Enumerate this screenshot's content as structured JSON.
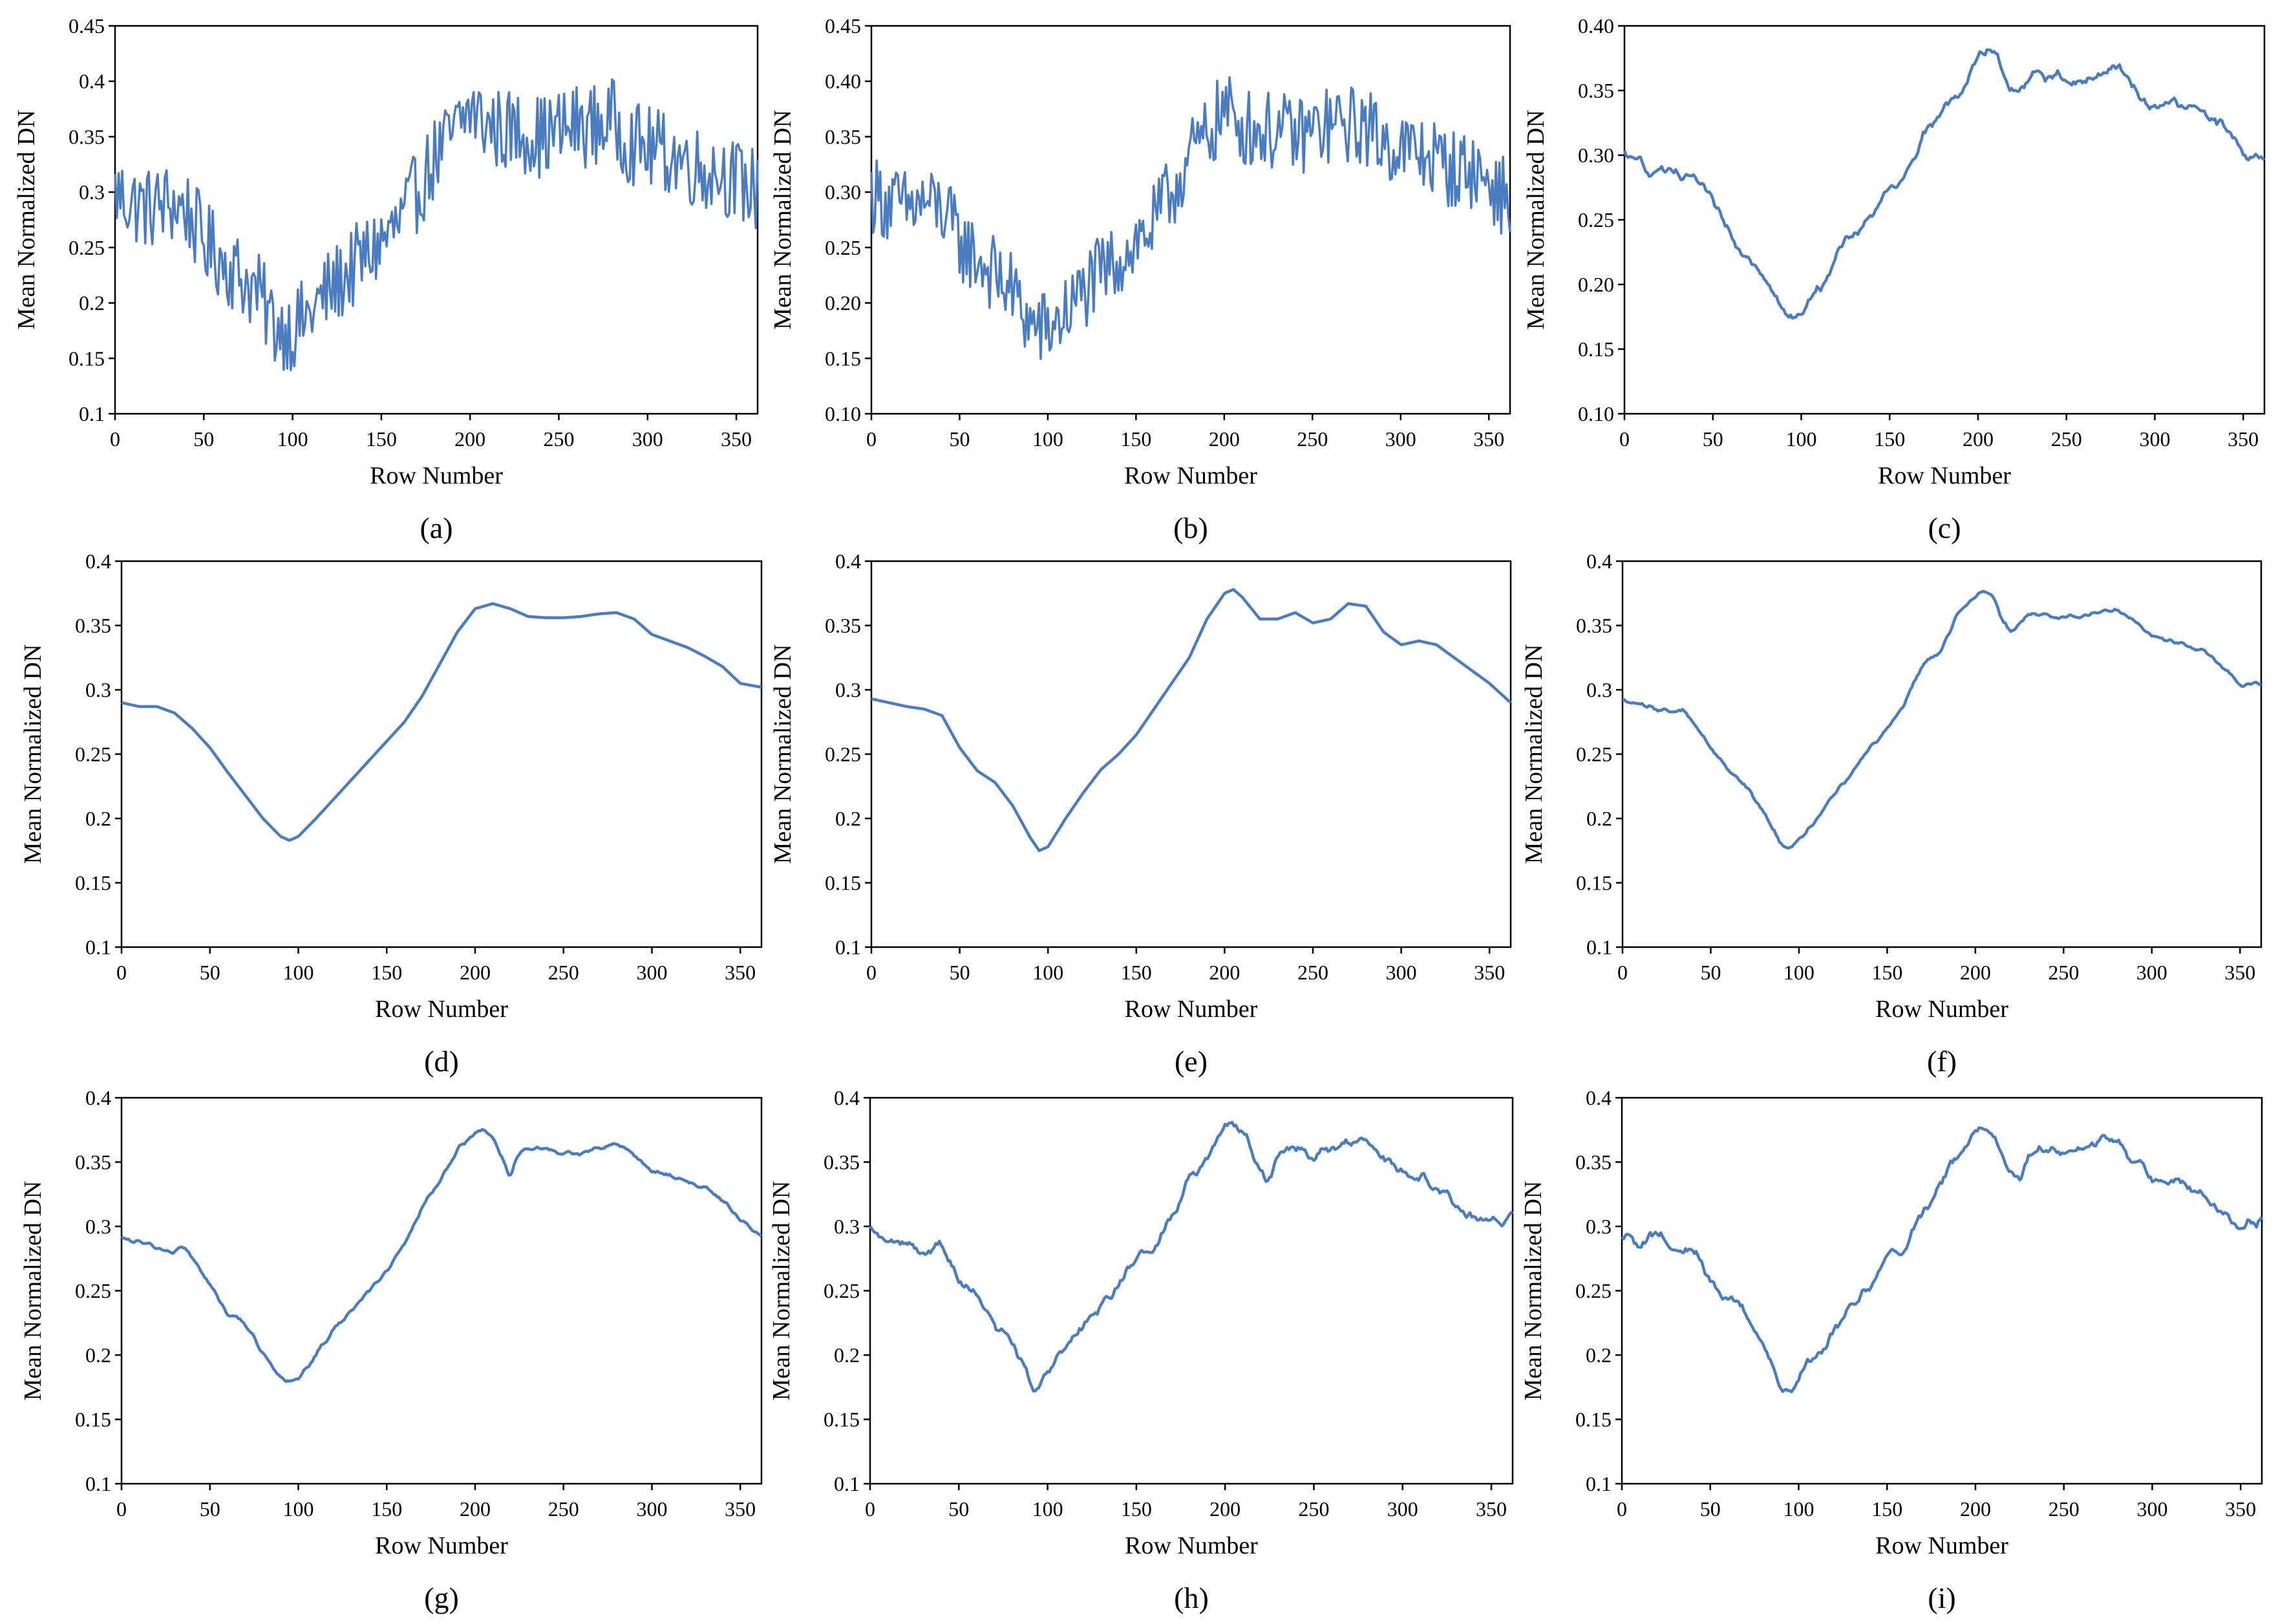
{
  "figure": {
    "common": {
      "xlabel": "Row Number",
      "ylabel": "Mean Normalized DN",
      "xlim": [
        0,
        362
      ],
      "xticks": [
        "0",
        "50",
        "100",
        "150",
        "200",
        "250",
        "300",
        "350"
      ],
      "line_color": "#4a7cbf",
      "axis_color": "#000000",
      "noise_levels": {
        "a": 0.038,
        "b": 0.036,
        "c": 0.014,
        "d": 0.0,
        "e": 0.0,
        "f": 0.0025,
        "g": 0.0025,
        "h": 0.01,
        "i": 0.01
      },
      "smoothing_windows": {
        "a": 0,
        "b": 0,
        "c": 3,
        "d": 0,
        "e": 0,
        "f": 1,
        "g": 1,
        "h": 2,
        "i": 2
      }
    }
  },
  "chart_data": [
    {
      "id": "a",
      "label": "(a)",
      "type": "line",
      "style": "very noisy",
      "xlabel": "Row Number",
      "ylabel": "Mean Normalized DN",
      "ylim": [
        0.1,
        0.45
      ],
      "yticks": [
        "0.1",
        "0.15",
        "0.2",
        "0.25",
        "0.3",
        "0.35",
        "0.4",
        "0.45"
      ],
      "xlim": [
        0,
        362
      ],
      "x": [
        0,
        10,
        20,
        30,
        40,
        50,
        60,
        70,
        80,
        90,
        100,
        110,
        120,
        130,
        140,
        150,
        160,
        170,
        180,
        190,
        200,
        210,
        220,
        230,
        240,
        250,
        260,
        270,
        280,
        290,
        300,
        310,
        320,
        330,
        340,
        350,
        362
      ],
      "y": [
        0.3,
        0.29,
        0.285,
        0.29,
        0.285,
        0.255,
        0.24,
        0.225,
        0.21,
        0.18,
        0.175,
        0.19,
        0.21,
        0.225,
        0.24,
        0.255,
        0.27,
        0.3,
        0.33,
        0.35,
        0.375,
        0.36,
        0.355,
        0.355,
        0.35,
        0.355,
        0.36,
        0.36,
        0.365,
        0.345,
        0.34,
        0.335,
        0.33,
        0.32,
        0.32,
        0.31,
        0.3
      ]
    },
    {
      "id": "b",
      "label": "(b)",
      "type": "line",
      "style": "very noisy",
      "xlabel": "Row Number",
      "ylabel": "Mean Normalized DN",
      "ylim": [
        0.1,
        0.45
      ],
      "yticks": [
        "0.10",
        "0.15",
        "0.20",
        "0.25",
        "0.30",
        "0.35",
        "0.40",
        "0.45"
      ],
      "xlim": [
        0,
        362
      ],
      "x": [
        0,
        10,
        20,
        30,
        40,
        50,
        60,
        70,
        80,
        90,
        100,
        110,
        120,
        130,
        140,
        150,
        160,
        170,
        180,
        190,
        200,
        210,
        220,
        230,
        240,
        250,
        260,
        270,
        280,
        290,
        300,
        310,
        320,
        330,
        340,
        350,
        362
      ],
      "y": [
        0.3,
        0.29,
        0.285,
        0.29,
        0.285,
        0.255,
        0.24,
        0.225,
        0.21,
        0.18,
        0.175,
        0.19,
        0.21,
        0.225,
        0.24,
        0.255,
        0.27,
        0.3,
        0.33,
        0.35,
        0.375,
        0.36,
        0.355,
        0.355,
        0.35,
        0.355,
        0.36,
        0.36,
        0.36,
        0.345,
        0.34,
        0.335,
        0.33,
        0.32,
        0.32,
        0.31,
        0.29
      ]
    },
    {
      "id": "c",
      "label": "(c)",
      "type": "line",
      "style": "moderately noisy",
      "xlabel": "Row Number",
      "ylabel": "Mean Normalized DN",
      "ylim": [
        0.1,
        0.4
      ],
      "yticks": [
        "0.10",
        "0.15",
        "0.20",
        "0.25",
        "0.30",
        "0.35",
        "0.40"
      ],
      "xlim": [
        0,
        362
      ],
      "x": [
        0,
        10,
        20,
        30,
        40,
        50,
        60,
        70,
        80,
        90,
        95,
        100,
        110,
        120,
        130,
        140,
        150,
        160,
        170,
        180,
        190,
        200,
        210,
        220,
        230,
        240,
        250,
        260,
        270,
        280,
        290,
        300,
        310,
        320,
        330,
        340,
        350,
        362
      ],
      "y": [
        0.3,
        0.29,
        0.29,
        0.28,
        0.28,
        0.26,
        0.24,
        0.225,
        0.21,
        0.175,
        0.17,
        0.18,
        0.2,
        0.22,
        0.24,
        0.255,
        0.27,
        0.29,
        0.32,
        0.335,
        0.35,
        0.375,
        0.38,
        0.345,
        0.365,
        0.36,
        0.36,
        0.355,
        0.365,
        0.37,
        0.345,
        0.34,
        0.34,
        0.335,
        0.33,
        0.32,
        0.305,
        0.29
      ]
    },
    {
      "id": "d",
      "label": "(d)",
      "type": "line",
      "style": "smooth",
      "xlabel": "Row Number",
      "ylabel": "Mean Normalized DN",
      "ylim": [
        0.1,
        0.4
      ],
      "yticks": [
        "0.1",
        "0.15",
        "0.2",
        "0.25",
        "0.3",
        "0.35",
        "0.4"
      ],
      "xlim": [
        0,
        362
      ],
      "x": [
        0,
        10,
        20,
        30,
        40,
        50,
        60,
        70,
        80,
        90,
        95,
        100,
        110,
        120,
        130,
        140,
        150,
        160,
        170,
        180,
        190,
        200,
        210,
        220,
        230,
        240,
        250,
        260,
        270,
        280,
        290,
        300,
        310,
        320,
        330,
        340,
        350,
        362
      ],
      "y": [
        0.29,
        0.287,
        0.287,
        0.282,
        0.27,
        0.255,
        0.236,
        0.218,
        0.2,
        0.186,
        0.183,
        0.186,
        0.2,
        0.215,
        0.23,
        0.245,
        0.26,
        0.275,
        0.295,
        0.32,
        0.345,
        0.363,
        0.367,
        0.363,
        0.357,
        0.356,
        0.356,
        0.357,
        0.359,
        0.36,
        0.355,
        0.343,
        0.338,
        0.333,
        0.326,
        0.318,
        0.305,
        0.302
      ]
    },
    {
      "id": "e",
      "label": "(e)",
      "type": "line",
      "style": "smooth",
      "xlabel": "Row Number",
      "ylabel": "Mean Normalized DN",
      "ylim": [
        0.1,
        0.4
      ],
      "yticks": [
        "0.1",
        "0.15",
        "0.2",
        "0.25",
        "0.3",
        "0.35",
        "0.4"
      ],
      "xlim": [
        0,
        362
      ],
      "x": [
        0,
        10,
        20,
        30,
        40,
        50,
        60,
        70,
        80,
        90,
        95,
        100,
        110,
        120,
        130,
        140,
        150,
        160,
        170,
        180,
        190,
        200,
        205,
        210,
        220,
        230,
        240,
        250,
        260,
        270,
        280,
        290,
        300,
        310,
        320,
        330,
        340,
        350,
        362
      ],
      "y": [
        0.293,
        0.29,
        0.287,
        0.285,
        0.28,
        0.255,
        0.237,
        0.228,
        0.21,
        0.185,
        0.175,
        0.178,
        0.2,
        0.22,
        0.238,
        0.25,
        0.265,
        0.285,
        0.305,
        0.325,
        0.355,
        0.375,
        0.378,
        0.372,
        0.355,
        0.355,
        0.36,
        0.352,
        0.355,
        0.367,
        0.365,
        0.345,
        0.335,
        0.338,
        0.335,
        0.325,
        0.315,
        0.305,
        0.29
      ]
    },
    {
      "id": "f",
      "label": "(f)",
      "type": "line",
      "style": "slightly noisy",
      "xlabel": "Row Number",
      "ylabel": "Mean Normalized DN",
      "ylim": [
        0.1,
        0.4
      ],
      "yticks": [
        "0.1",
        "0.15",
        "0.2",
        "0.25",
        "0.3",
        "0.35",
        "0.4"
      ],
      "xlim": [
        0,
        362
      ],
      "x": [
        0,
        10,
        20,
        30,
        35,
        40,
        50,
        60,
        70,
        80,
        90,
        95,
        100,
        110,
        120,
        130,
        140,
        150,
        160,
        170,
        180,
        190,
        200,
        205,
        210,
        215,
        220,
        230,
        240,
        250,
        260,
        270,
        280,
        290,
        300,
        310,
        320,
        330,
        340,
        350,
        362
      ],
      "y": [
        0.292,
        0.288,
        0.285,
        0.283,
        0.285,
        0.275,
        0.255,
        0.238,
        0.225,
        0.205,
        0.18,
        0.178,
        0.182,
        0.2,
        0.22,
        0.235,
        0.255,
        0.27,
        0.29,
        0.32,
        0.33,
        0.36,
        0.373,
        0.376,
        0.372,
        0.355,
        0.345,
        0.358,
        0.358,
        0.357,
        0.357,
        0.36,
        0.363,
        0.353,
        0.343,
        0.338,
        0.335,
        0.33,
        0.318,
        0.303,
        0.305
      ]
    },
    {
      "id": "g",
      "label": "(g)",
      "type": "line",
      "style": "slightly noisy",
      "xlabel": "Row Number",
      "ylabel": "Mean Normalized DN",
      "ylim": [
        0.1,
        0.4
      ],
      "yticks": [
        "0.1",
        "0.15",
        "0.2",
        "0.25",
        "0.3",
        "0.35",
        "0.4"
      ],
      "xlim": [
        0,
        362
      ],
      "x": [
        0,
        10,
        20,
        30,
        35,
        40,
        50,
        60,
        70,
        80,
        90,
        95,
        100,
        110,
        120,
        130,
        140,
        150,
        160,
        170,
        180,
        190,
        200,
        205,
        210,
        215,
        220,
        225,
        230,
        240,
        250,
        260,
        270,
        280,
        290,
        300,
        310,
        320,
        330,
        340,
        350,
        362
      ],
      "y": [
        0.29,
        0.288,
        0.283,
        0.28,
        0.285,
        0.275,
        0.255,
        0.232,
        0.225,
        0.2,
        0.182,
        0.18,
        0.182,
        0.2,
        0.22,
        0.235,
        0.25,
        0.265,
        0.285,
        0.315,
        0.335,
        0.36,
        0.373,
        0.375,
        0.37,
        0.355,
        0.338,
        0.358,
        0.36,
        0.36,
        0.357,
        0.357,
        0.36,
        0.365,
        0.355,
        0.343,
        0.34,
        0.335,
        0.33,
        0.32,
        0.305,
        0.292
      ]
    },
    {
      "id": "h",
      "label": "(h)",
      "type": "line",
      "style": "moderately noisy",
      "xlabel": "Row Number",
      "ylabel": "Mean Normalized DN",
      "ylim": [
        0.1,
        0.4
      ],
      "yticks": [
        "0.1",
        "0.15",
        "0.2",
        "0.25",
        "0.3",
        "0.35",
        "0.4"
      ],
      "xlim": [
        0,
        362
      ],
      "x": [
        0,
        10,
        20,
        30,
        40,
        50,
        60,
        70,
        80,
        90,
        95,
        100,
        110,
        120,
        130,
        140,
        150,
        160,
        170,
        180,
        190,
        200,
        205,
        210,
        220,
        225,
        230,
        240,
        250,
        260,
        270,
        280,
        290,
        300,
        310,
        320,
        330,
        340,
        350,
        362
      ],
      "y": [
        0.295,
        0.285,
        0.29,
        0.28,
        0.285,
        0.26,
        0.245,
        0.225,
        0.21,
        0.178,
        0.175,
        0.185,
        0.205,
        0.22,
        0.24,
        0.255,
        0.275,
        0.28,
        0.31,
        0.335,
        0.35,
        0.38,
        0.38,
        0.375,
        0.345,
        0.33,
        0.358,
        0.36,
        0.355,
        0.36,
        0.368,
        0.37,
        0.352,
        0.343,
        0.338,
        0.33,
        0.318,
        0.305,
        0.302,
        0.305
      ]
    },
    {
      "id": "i",
      "label": "(i)",
      "type": "line",
      "style": "moderately noisy",
      "xlabel": "Row Number",
      "ylabel": "Mean Normalized DN",
      "ylim": [
        0.1,
        0.4
      ],
      "yticks": [
        "0.1",
        "0.15",
        "0.2",
        "0.25",
        "0.3",
        "0.35",
        "0.4"
      ],
      "xlim": [
        0,
        362
      ],
      "x": [
        0,
        10,
        20,
        30,
        40,
        50,
        60,
        70,
        80,
        90,
        95,
        100,
        110,
        120,
        130,
        140,
        150,
        160,
        170,
        180,
        190,
        200,
        205,
        210,
        220,
        225,
        230,
        240,
        250,
        260,
        270,
        280,
        290,
        300,
        310,
        320,
        330,
        340,
        350,
        362
      ],
      "y": [
        0.298,
        0.288,
        0.295,
        0.278,
        0.285,
        0.26,
        0.245,
        0.23,
        0.21,
        0.175,
        0.172,
        0.182,
        0.2,
        0.22,
        0.24,
        0.255,
        0.275,
        0.285,
        0.31,
        0.335,
        0.355,
        0.375,
        0.38,
        0.375,
        0.345,
        0.33,
        0.36,
        0.36,
        0.355,
        0.36,
        0.368,
        0.37,
        0.35,
        0.338,
        0.335,
        0.33,
        0.32,
        0.31,
        0.3,
        0.31
      ]
    }
  ]
}
